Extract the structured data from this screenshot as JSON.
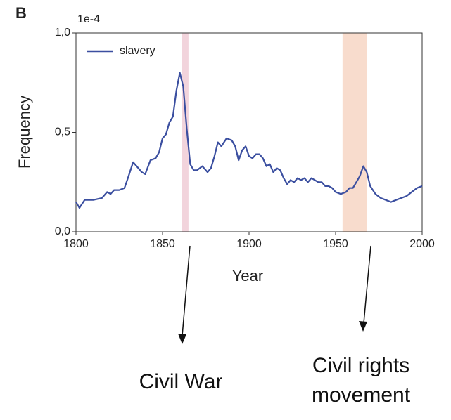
{
  "chart_data": {
    "type": "line",
    "panel_label": "B",
    "offset_text": "1e-4",
    "xlabel": "Year",
    "ylabel": "Frequency",
    "xlim": [
      1800,
      2000
    ],
    "ylim": [
      0,
      1
    ],
    "xticks": [
      1800,
      1850,
      1900,
      1950,
      2000
    ],
    "yticks": [
      {
        "value": 0,
        "label": "0,0"
      },
      {
        "value": 0.5,
        "label": "0,5"
      },
      {
        "value": 1,
        "label": "1,0"
      }
    ],
    "legend": "upper left",
    "spans": [
      {
        "start": 1861,
        "end": 1865,
        "color": "#f2d4dc"
      },
      {
        "start": 1954,
        "end": 1968,
        "color": "#f8dccd"
      }
    ],
    "annotations": [
      {
        "lines": [
          "Civil War"
        ]
      },
      {
        "lines": [
          "Civil rights",
          "movement"
        ]
      }
    ],
    "x": [
      1800,
      1802,
      1805,
      1810,
      1815,
      1818,
      1820,
      1822,
      1825,
      1828,
      1830,
      1833,
      1836,
      1838,
      1840,
      1843,
      1846,
      1848,
      1850,
      1852,
      1854,
      1856,
      1858,
      1860,
      1862,
      1864,
      1866,
      1868,
      1870,
      1873,
      1876,
      1878,
      1880,
      1882,
      1884,
      1887,
      1890,
      1892,
      1894,
      1896,
      1898,
      1900,
      1902,
      1904,
      1906,
      1908,
      1910,
      1912,
      1914,
      1916,
      1918,
      1920,
      1922,
      1924,
      1926,
      1928,
      1930,
      1932,
      1934,
      1936,
      1938,
      1940,
      1942,
      1944,
      1946,
      1948,
      1950,
      1953,
      1956,
      1958,
      1960,
      1962,
      1964,
      1966,
      1968,
      1970,
      1973,
      1976,
      1979,
      1982,
      1985,
      1988,
      1991,
      1994,
      1997,
      2000
    ],
    "series": [
      {
        "name": "slavery",
        "color": "#3b4fa0",
        "values": [
          0.15,
          0.12,
          0.16,
          0.16,
          0.17,
          0.2,
          0.19,
          0.21,
          0.21,
          0.22,
          0.27,
          0.35,
          0.32,
          0.3,
          0.29,
          0.36,
          0.37,
          0.4,
          0.47,
          0.49,
          0.55,
          0.58,
          0.71,
          0.8,
          0.73,
          0.52,
          0.34,
          0.31,
          0.31,
          0.33,
          0.3,
          0.32,
          0.38,
          0.45,
          0.43,
          0.47,
          0.46,
          0.43,
          0.36,
          0.41,
          0.43,
          0.38,
          0.37,
          0.39,
          0.39,
          0.37,
          0.33,
          0.34,
          0.3,
          0.32,
          0.31,
          0.27,
          0.24,
          0.26,
          0.25,
          0.27,
          0.26,
          0.27,
          0.25,
          0.27,
          0.26,
          0.25,
          0.25,
          0.23,
          0.23,
          0.22,
          0.2,
          0.19,
          0.2,
          0.22,
          0.22,
          0.25,
          0.28,
          0.33,
          0.3,
          0.23,
          0.19,
          0.17,
          0.16,
          0.15,
          0.16,
          0.17,
          0.18,
          0.2,
          0.22,
          0.23
        ]
      }
    ]
  }
}
